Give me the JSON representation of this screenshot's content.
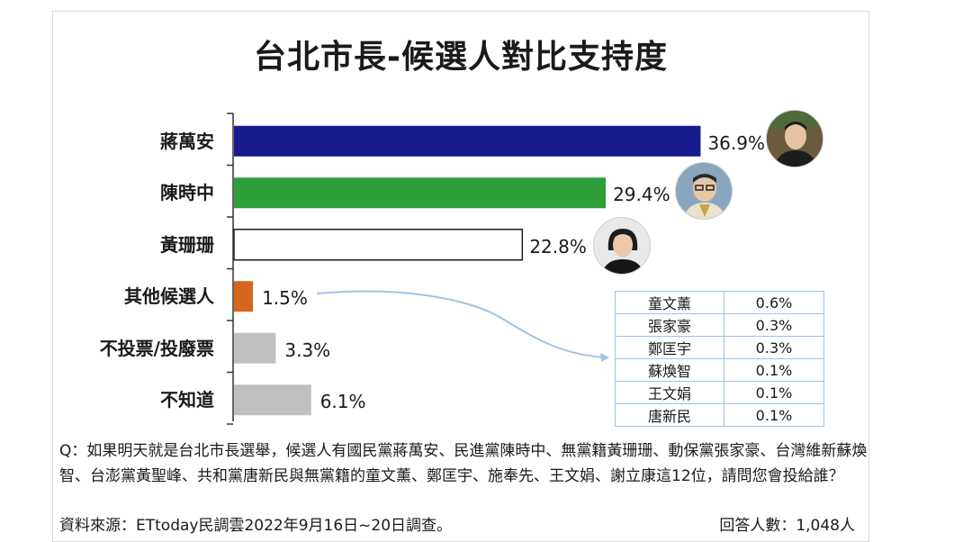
{
  "chart_data": {
    "type": "bar",
    "orientation": "horizontal",
    "title": "台北市長-候選人對比支持度",
    "categories": [
      "蔣萬安",
      "陳時中",
      "黃珊珊",
      "其他候選人",
      "不投票/投廢票",
      "不知道"
    ],
    "values": [
      36.9,
      29.4,
      22.8,
      1.5,
      3.3,
      6.1
    ],
    "value_labels": [
      "36.9%",
      "29.4%",
      "22.8%",
      "1.5%",
      "3.3%",
      "6.1%"
    ],
    "colors": [
      "#1a1a8f",
      "#2e9e3b",
      "#ffffff",
      "#d4661f",
      "#c0c0c0",
      "#c0c0c0"
    ],
    "bar_border": [
      "none",
      "none",
      "#1a1a1a",
      "none",
      "none",
      "none"
    ],
    "xlim": [
      0,
      40
    ],
    "unit": "%",
    "others_breakdown": [
      {
        "name": "童文薰",
        "value": "0.6%"
      },
      {
        "name": "張家豪",
        "value": "0.3%"
      },
      {
        "name": "鄭匡宇",
        "value": "0.3%"
      },
      {
        "name": "蘇煥智",
        "value": "0.1%"
      },
      {
        "name": "王文娟",
        "value": "0.1%"
      },
      {
        "name": "唐新民",
        "value": "0.1%"
      }
    ]
  },
  "question": "Q：如果明天就是台北市長選舉，候選人有國民黨蔣萬安、民進黨陳時中、無黨籍黃珊珊、動保黨張家豪、台灣維新蘇煥智、台澎黨黃聖峰、共和黨唐新民與無黨籍的童文薰、鄭匡宇、施奉先、王文娟、謝立康這12位，請問您會投給誰？",
  "source": "資料來源：ETtoday民調雲2022年9月16日~20日調查。",
  "respondents": "回答人數：1,048人",
  "accent_arrow_color": "#9ec3e6"
}
